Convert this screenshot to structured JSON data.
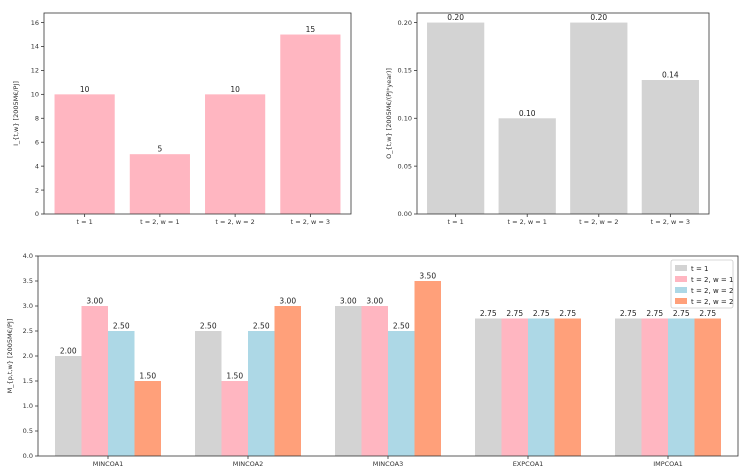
{
  "chart_data": [
    {
      "type": "bar",
      "title": "",
      "xlabel": "",
      "ylabel": "I_{t,w} [2005M€/PJ]",
      "categories": [
        "t = 1",
        "t = 2, w = 1",
        "t = 2, w = 2",
        "t = 2, w = 3"
      ],
      "values": [
        10,
        5,
        10,
        15
      ],
      "value_labels": [
        "10",
        "5",
        "10",
        "15"
      ],
      "ylim": [
        0,
        16.8
      ],
      "yticks": [
        0,
        2,
        4,
        6,
        8,
        10,
        12,
        14,
        16
      ],
      "color": "#ffb6c1"
    },
    {
      "type": "bar",
      "title": "",
      "xlabel": "",
      "ylabel": "O_{t,w} [2005M€/(PJ*year)]",
      "categories": [
        "t = 1",
        "t = 2, w = 1",
        "t = 2, w = 2",
        "t = 2, w = 3"
      ],
      "values": [
        0.2,
        0.1,
        0.2,
        0.14
      ],
      "value_labels": [
        "0.20",
        "0.10",
        "0.20",
        "0.14"
      ],
      "ylim": [
        0,
        0.21
      ],
      "yticks": [
        0.0,
        0.05,
        0.1,
        0.15,
        0.2
      ],
      "ytick_labels": [
        "0.00",
        "0.05",
        "0.10",
        "0.15",
        "0.20"
      ],
      "color": "#d3d3d3"
    },
    {
      "type": "bar",
      "title": "",
      "xlabel": "",
      "ylabel": "M_{p,t,w} [2005M€/PJ]",
      "categories": [
        "MINCOA1",
        "MINCOA2",
        "MINCOA3",
        "EXPCOA1",
        "IMPCOA1"
      ],
      "series": [
        {
          "name": "t = 1",
          "color": "#d3d3d3",
          "values": [
            2.0,
            2.5,
            3.0,
            2.75,
            2.75
          ],
          "labels": [
            "2.00",
            "2.50",
            "3.00",
            "2.75",
            "2.75"
          ]
        },
        {
          "name": "t = 2, w = 1",
          "color": "#ffb6c1",
          "values": [
            3.0,
            1.5,
            3.0,
            2.75,
            2.75
          ],
          "labels": [
            "3.00",
            "1.50",
            "3.00",
            "2.75",
            "2.75"
          ]
        },
        {
          "name": "t = 2, w = 2",
          "color": "#add8e6",
          "values": [
            2.5,
            2.5,
            2.5,
            2.75,
            2.75
          ],
          "labels": [
            "2.50",
            "2.50",
            "2.50",
            "2.75",
            "2.75"
          ]
        },
        {
          "name": "t = 2, w = 2",
          "color": "#ffa07a",
          "values": [
            1.5,
            3.0,
            3.5,
            2.75,
            2.75
          ],
          "labels": [
            "1.50",
            "3.00",
            "3.50",
            "2.75",
            "2.75"
          ]
        }
      ],
      "ylim": [
        0,
        4.0
      ],
      "yticks": [
        0.0,
        0.5,
        1.0,
        1.5,
        2.0,
        2.5,
        3.0,
        3.5,
        4.0
      ],
      "ytick_labels": [
        "0.0",
        "0.5",
        "1.0",
        "1.5",
        "2.0",
        "2.5",
        "3.0",
        "3.5",
        "4.0"
      ],
      "legend": "top-right"
    }
  ]
}
